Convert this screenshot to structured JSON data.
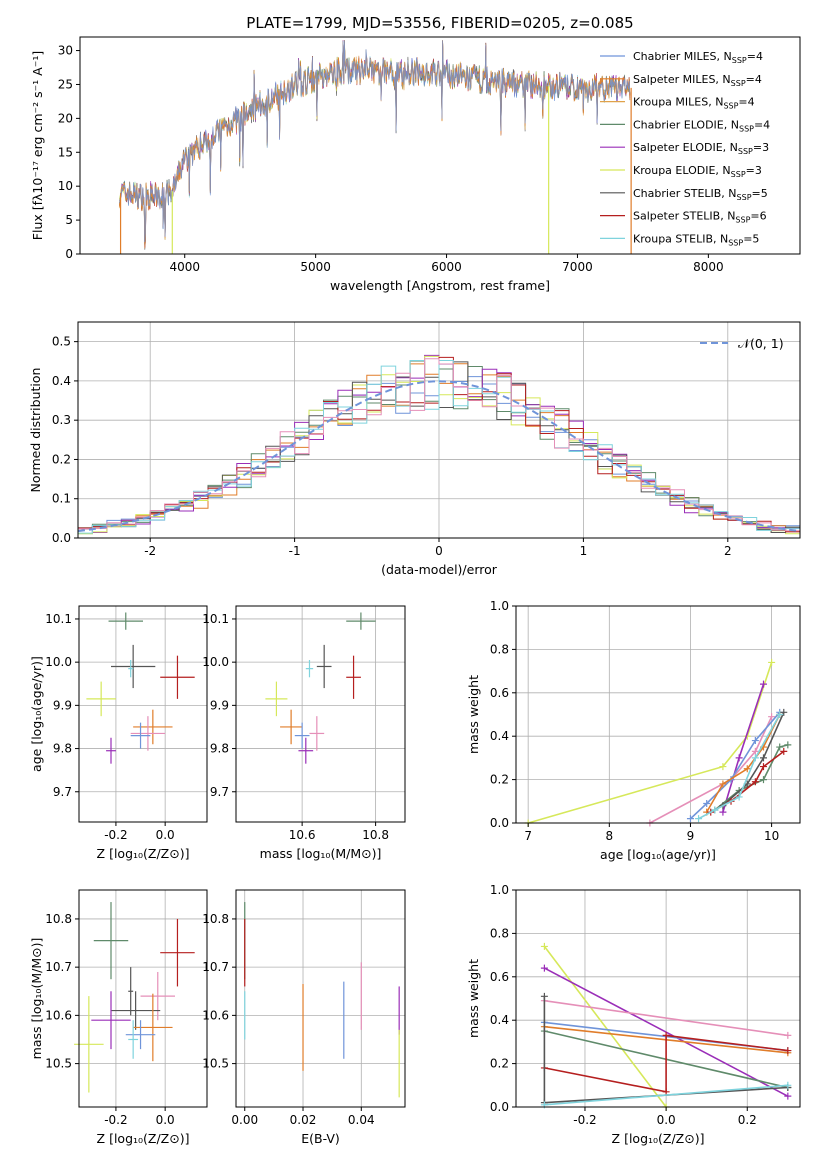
{
  "palette": [
    "#6f94d9",
    "#e07d2a",
    "#a6d080",
    "#5f8a6a",
    "#9a2eb8",
    "#d6e85a",
    "#555555",
    "#b51f1f",
    "#7fd3dd",
    "#e58fb8"
  ],
  "chart_data": [
    {
      "id": "spectrum",
      "type": "line",
      "title": "PLATE=1799, MJD=53556, FIBERID=0205, z=0.085",
      "xlabel": "wavelength [Angstrom, rest frame]",
      "ylabel": "Flux [fλ10⁻¹⁷ erg cm⁻² s⁻¹ A⁻¹]",
      "xlim": [
        3200,
        8700
      ],
      "ylim": [
        0,
        32
      ],
      "xticks": [
        4000,
        5000,
        6000,
        7000,
        8000
      ],
      "yticks": [
        0,
        5,
        10,
        15,
        20,
        25,
        30
      ],
      "legend_position": "top-right",
      "legend": [
        {
          "name": "Chabrier MILES, N",
          "sub": "SSP",
          "tail": "=4",
          "color": "#6f94d9"
        },
        {
          "name": "Salpeter MILES, N",
          "sub": "SSP",
          "tail": "=4",
          "color": "#e07d2a"
        },
        {
          "name": "Kroupa MILES, N",
          "sub": "SSP",
          "tail": "=4",
          "color": "#e0a24a"
        },
        {
          "name": "Chabrier ELODIE, N",
          "sub": "SSP",
          "tail": "=4",
          "color": "#5f8a6a"
        },
        {
          "name": "Salpeter ELODIE, N",
          "sub": "SSP",
          "tail": "=3",
          "color": "#9a2eb8"
        },
        {
          "name": "Kroupa ELODIE, N",
          "sub": "SSP",
          "tail": "=3",
          "color": "#d6e85a"
        },
        {
          "name": "Chabrier STELIB, N",
          "sub": "SSP",
          "tail": "=5",
          "color": "#555555"
        },
        {
          "name": "Salpeter STELIB, N",
          "sub": "SSP",
          "tail": "=6",
          "color": "#b51f1f"
        },
        {
          "name": "Kroupa STELIB, N",
          "sub": "SSP",
          "tail": "=5",
          "color": "#7fd3dd"
        }
      ],
      "continuum": {
        "x": [
          3500,
          3700,
          3900,
          4000,
          4200,
          4500,
          4800,
          5000,
          5200,
          5500,
          5800,
          6000,
          6300,
          6600,
          7000,
          7400
        ],
        "y": [
          9,
          8.5,
          9,
          14,
          17.5,
          21,
          24.5,
          26,
          27,
          27,
          26.8,
          26.5,
          25.5,
          25,
          24.5,
          24.5
        ]
      },
      "dips": [
        {
          "x": 3510,
          "y": 0,
          "color": "#e07d2a"
        },
        {
          "x": 3905,
          "y": 0,
          "color": "#d6e85a"
        },
        {
          "x": 6780,
          "y": 0,
          "color": "#d6e85a"
        },
        {
          "x": 7410,
          "y": 0,
          "color": "#e07d2a"
        }
      ]
    },
    {
      "id": "residuals",
      "type": "histogram",
      "xlabel": "(data-model)/error",
      "ylabel": "Normed distribution",
      "xlim": [
        -2.5,
        2.5
      ],
      "ylim": [
        0,
        0.55
      ],
      "xticks": [
        -2,
        -1,
        0,
        1,
        2
      ],
      "yticks": [
        0,
        0.1,
        0.2,
        0.3,
        0.4,
        0.5
      ],
      "grid": true,
      "legend_position": "top-right",
      "reference_curve": {
        "name": "𝒩(0, 1)",
        "color": "#6f94d9",
        "mean": 0,
        "sigma": 1
      },
      "bin_width": 0.1,
      "series_colors": [
        "#6f94d9",
        "#e07d2a",
        "#5f8a6a",
        "#9a2eb8",
        "#d6e85a",
        "#555555",
        "#b51f1f",
        "#7fd3dd",
        "#e58fb8"
      ]
    },
    {
      "id": "age-vs-Z",
      "type": "errorbar",
      "xlabel": "Z [log₁₀(Z/Z⊙)]",
      "ylabel": "age  [log₁₀(age/yr)]",
      "xlim": [
        -0.35,
        0.17
      ],
      "ylim": [
        9.63,
        10.13
      ],
      "xticks": [
        -0.2,
        0.0
      ],
      "yticks": [
        9.7,
        9.8,
        9.9,
        10.0,
        10.1
      ],
      "grid": true,
      "points": [
        {
          "x": -0.16,
          "y": 10.095,
          "xerr": 0.07,
          "yerr": 0.02,
          "color": "#5f8a6a"
        },
        {
          "x": -0.13,
          "y": 9.99,
          "xerr": 0.09,
          "yerr": 0.05,
          "color": "#555555"
        },
        {
          "x": 0.05,
          "y": 9.965,
          "xerr": 0.07,
          "yerr": 0.05,
          "color": "#b51f1f"
        },
        {
          "x": -0.14,
          "y": 9.985,
          "xerr": 0.01,
          "yerr": 0.02,
          "color": "#7fd3dd"
        },
        {
          "x": -0.26,
          "y": 9.915,
          "xerr": 0.06,
          "yerr": 0.04,
          "color": "#d6e85a"
        },
        {
          "x": -0.05,
          "y": 9.85,
          "xerr": 0.08,
          "yerr": 0.04,
          "color": "#e07d2a"
        },
        {
          "x": -0.07,
          "y": 9.835,
          "xerr": 0.07,
          "yerr": 0.04,
          "color": "#e58fb8"
        },
        {
          "x": -0.1,
          "y": 9.83,
          "xerr": 0.04,
          "yerr": 0.03,
          "color": "#6f94d9"
        },
        {
          "x": -0.22,
          "y": 9.795,
          "xerr": 0.02,
          "yerr": 0.03,
          "color": "#9a2eb8"
        }
      ]
    },
    {
      "id": "age-vs-mass",
      "type": "errorbar",
      "xlabel": "mass [log₁₀(M/M⊙)]",
      "ylabel": "",
      "xlim": [
        10.42,
        10.88
      ],
      "ylim": [
        9.63,
        10.13
      ],
      "xticks": [
        10.6,
        10.8
      ],
      "yticks": [
        9.7,
        9.8,
        9.9,
        10.0,
        10.1
      ],
      "grid": true,
      "points": [
        {
          "x": 10.76,
          "y": 10.095,
          "xerr": 0.04,
          "yerr": 0.02,
          "color": "#5f8a6a"
        },
        {
          "x": 10.66,
          "y": 9.99,
          "xerr": 0.02,
          "yerr": 0.05,
          "color": "#555555"
        },
        {
          "x": 10.74,
          "y": 9.965,
          "xerr": 0.02,
          "yerr": 0.05,
          "color": "#b51f1f"
        },
        {
          "x": 10.62,
          "y": 9.985,
          "xerr": 0.01,
          "yerr": 0.02,
          "color": "#7fd3dd"
        },
        {
          "x": 10.53,
          "y": 9.915,
          "xerr": 0.03,
          "yerr": 0.04,
          "color": "#d6e85a"
        },
        {
          "x": 10.57,
          "y": 9.85,
          "xerr": 0.03,
          "yerr": 0.04,
          "color": "#e07d2a"
        },
        {
          "x": 10.64,
          "y": 9.835,
          "xerr": 0.02,
          "yerr": 0.04,
          "color": "#e58fb8"
        },
        {
          "x": 10.6,
          "y": 9.83,
          "xerr": 0.02,
          "yerr": 0.03,
          "color": "#6f94d9"
        },
        {
          "x": 10.61,
          "y": 9.795,
          "xerr": 0.02,
          "yerr": 0.03,
          "color": "#9a2eb8"
        }
      ]
    },
    {
      "id": "weight-vs-age",
      "type": "line",
      "xlabel": "age  [log₁₀(age/yr)]",
      "ylabel": "mass weight",
      "xlim": [
        6.85,
        10.35
      ],
      "ylim": [
        0,
        1
      ],
      "xticks": [
        7,
        8,
        9,
        10
      ],
      "yticks": [
        0,
        0.2,
        0.4,
        0.6,
        0.8,
        1.0
      ],
      "grid": true,
      "series": [
        {
          "color": "#d6e85a",
          "x": [
            7.0,
            9.4,
            9.7,
            10.0
          ],
          "y": [
            0.0,
            0.26,
            0.4,
            0.74
          ]
        },
        {
          "color": "#9a2eb8",
          "x": [
            9.4,
            9.6,
            9.9
          ],
          "y": [
            0.05,
            0.3,
            0.64
          ]
        },
        {
          "color": "#e58fb8",
          "x": [
            8.5,
            9.5,
            9.8,
            10.0
          ],
          "y": [
            0.0,
            0.2,
            0.33,
            0.49
          ]
        },
        {
          "color": "#6f94d9",
          "x": [
            9.0,
            9.2,
            9.5,
            9.8,
            10.1
          ],
          "y": [
            0.02,
            0.09,
            0.2,
            0.38,
            0.51
          ]
        },
        {
          "color": "#e07d2a",
          "x": [
            9.2,
            9.4,
            9.7,
            9.9,
            10.1
          ],
          "y": [
            0.05,
            0.18,
            0.25,
            0.35,
            0.5
          ]
        },
        {
          "color": "#5f8a6a",
          "x": [
            9.3,
            9.6,
            9.9,
            10.1,
            10.2
          ],
          "y": [
            0.06,
            0.15,
            0.2,
            0.35,
            0.36
          ]
        },
        {
          "color": "#555555",
          "x": [
            9.4,
            9.7,
            9.9,
            10.15
          ],
          "y": [
            0.08,
            0.18,
            0.3,
            0.51
          ]
        },
        {
          "color": "#b51f1f",
          "x": [
            9.25,
            9.5,
            9.8,
            9.9,
            10.15
          ],
          "y": [
            0.05,
            0.1,
            0.19,
            0.26,
            0.33
          ]
        },
        {
          "color": "#7fd3dd",
          "x": [
            9.1,
            9.3,
            9.6,
            9.8,
            10.1
          ],
          "y": [
            0.02,
            0.06,
            0.12,
            0.3,
            0.5
          ]
        }
      ]
    },
    {
      "id": "mass-vs-Z",
      "type": "errorbar",
      "xlabel": "Z [log₁₀(Z/Z⊙)]",
      "ylabel": "mass [log₁₀(M/M⊙)]",
      "xlim": [
        -0.35,
        0.17
      ],
      "ylim": [
        10.41,
        10.86
      ],
      "xticks": [
        -0.2,
        0.0
      ],
      "yticks": [
        10.5,
        10.6,
        10.7,
        10.8
      ],
      "grid": true,
      "points": [
        {
          "x": -0.22,
          "y": 10.755,
          "xerr": 0.07,
          "yerr": 0.08,
          "color": "#5f8a6a"
        },
        {
          "x": 0.05,
          "y": 10.73,
          "xerr": 0.07,
          "yerr": 0.07,
          "color": "#b51f1f"
        },
        {
          "x": -0.14,
          "y": 10.65,
          "xerr": 0.01,
          "yerr": 0.05,
          "color": "#555555"
        },
        {
          "x": -0.03,
          "y": 10.64,
          "xerr": 0.07,
          "yerr": 0.05,
          "color": "#e58fb8"
        },
        {
          "x": -0.12,
          "y": 10.61,
          "xerr": 0.1,
          "yerr": 0.04,
          "color": "#555555"
        },
        {
          "x": -0.22,
          "y": 10.59,
          "xerr": 0.08,
          "yerr": 0.06,
          "color": "#9a2eb8"
        },
        {
          "x": -0.05,
          "y": 10.575,
          "xerr": 0.08,
          "yerr": 0.07,
          "color": "#e07d2a"
        },
        {
          "x": -0.1,
          "y": 10.56,
          "xerr": 0.06,
          "yerr": 0.03,
          "color": "#6f94d9"
        },
        {
          "x": -0.13,
          "y": 10.55,
          "xerr": 0.02,
          "yerr": 0.04,
          "color": "#7fd3dd"
        },
        {
          "x": -0.31,
          "y": 10.54,
          "xerr": 0.06,
          "yerr": 0.1,
          "color": "#d6e85a"
        }
      ]
    },
    {
      "id": "mass-vs-EBV",
      "type": "errorbar",
      "xlabel": "E(B-V)",
      "ylabel": "",
      "xlim": [
        -0.003,
        0.055
      ],
      "ylim": [
        10.41,
        10.86
      ],
      "xticks": [
        0.0,
        0.02,
        0.04
      ],
      "yticks": [
        10.5,
        10.6,
        10.7,
        10.8
      ],
      "grid": true,
      "points": [
        {
          "x": 0.0,
          "y": 10.755,
          "xerr": 0,
          "yerr": 0.08,
          "color": "#5f8a6a"
        },
        {
          "x": 0.0,
          "y": 10.73,
          "xerr": 0,
          "yerr": 0.07,
          "color": "#b51f1f"
        },
        {
          "x": 0.0,
          "y": 10.6,
          "xerr": 0,
          "yerr": 0.05,
          "color": "#7fd3dd"
        },
        {
          "x": 0.02,
          "y": 10.575,
          "xerr": 0,
          "yerr": 0.09,
          "color": "#e07d2a"
        },
        {
          "x": 0.034,
          "y": 10.59,
          "xerr": 0,
          "yerr": 0.08,
          "color": "#6f94d9"
        },
        {
          "x": 0.04,
          "y": 10.64,
          "xerr": 0,
          "yerr": 0.07,
          "color": "#e58fb8"
        },
        {
          "x": 0.053,
          "y": 10.61,
          "xerr": 0,
          "yerr": 0.05,
          "color": "#9a2eb8"
        },
        {
          "x": 0.053,
          "y": 10.5,
          "xerr": 0,
          "yerr": 0.07,
          "color": "#d6e85a"
        }
      ]
    },
    {
      "id": "weight-vs-Z",
      "type": "line",
      "xlabel": "Z [log₁₀(Z/Z⊙)]",
      "ylabel": "mass weight",
      "xlim": [
        -0.37,
        0.33
      ],
      "ylim": [
        0,
        1
      ],
      "xticks": [
        -0.2,
        0.0,
        0.2
      ],
      "yticks": [
        0,
        0.2,
        0.4,
        0.6,
        0.8,
        1.0
      ],
      "grid": true,
      "series": [
        {
          "color": "#d6e85a",
          "x": [
            -0.3,
            0.0
          ],
          "y": [
            0.74,
            0.0
          ]
        },
        {
          "color": "#9a2eb8",
          "x": [
            -0.3,
            0.3
          ],
          "y": [
            0.64,
            0.05
          ]
        },
        {
          "color": "#e58fb8",
          "x": [
            -0.3,
            0.3
          ],
          "y": [
            0.49,
            0.33
          ]
        },
        {
          "color": "#6f94d9",
          "x": [
            -0.3,
            0.3
          ],
          "y": [
            0.39,
            0.26
          ]
        },
        {
          "color": "#e07d2a",
          "x": [
            -0.3,
            0.3
          ],
          "y": [
            0.37,
            0.25
          ]
        },
        {
          "color": "#5f8a6a",
          "x": [
            -0.3,
            0.3
          ],
          "y": [
            0.35,
            0.09
          ]
        },
        {
          "color": "#b51f1f",
          "x": [
            -0.3,
            0.0,
            0.0,
            0.3
          ],
          "y": [
            0.18,
            0.07,
            0.33,
            0.26
          ]
        },
        {
          "color": "#555555",
          "x": [
            -0.3,
            -0.3,
            0.3
          ],
          "y": [
            0.51,
            0.02,
            0.09
          ]
        },
        {
          "color": "#7fd3dd",
          "x": [
            -0.3,
            0.3
          ],
          "y": [
            0.01,
            0.1
          ]
        }
      ]
    }
  ]
}
